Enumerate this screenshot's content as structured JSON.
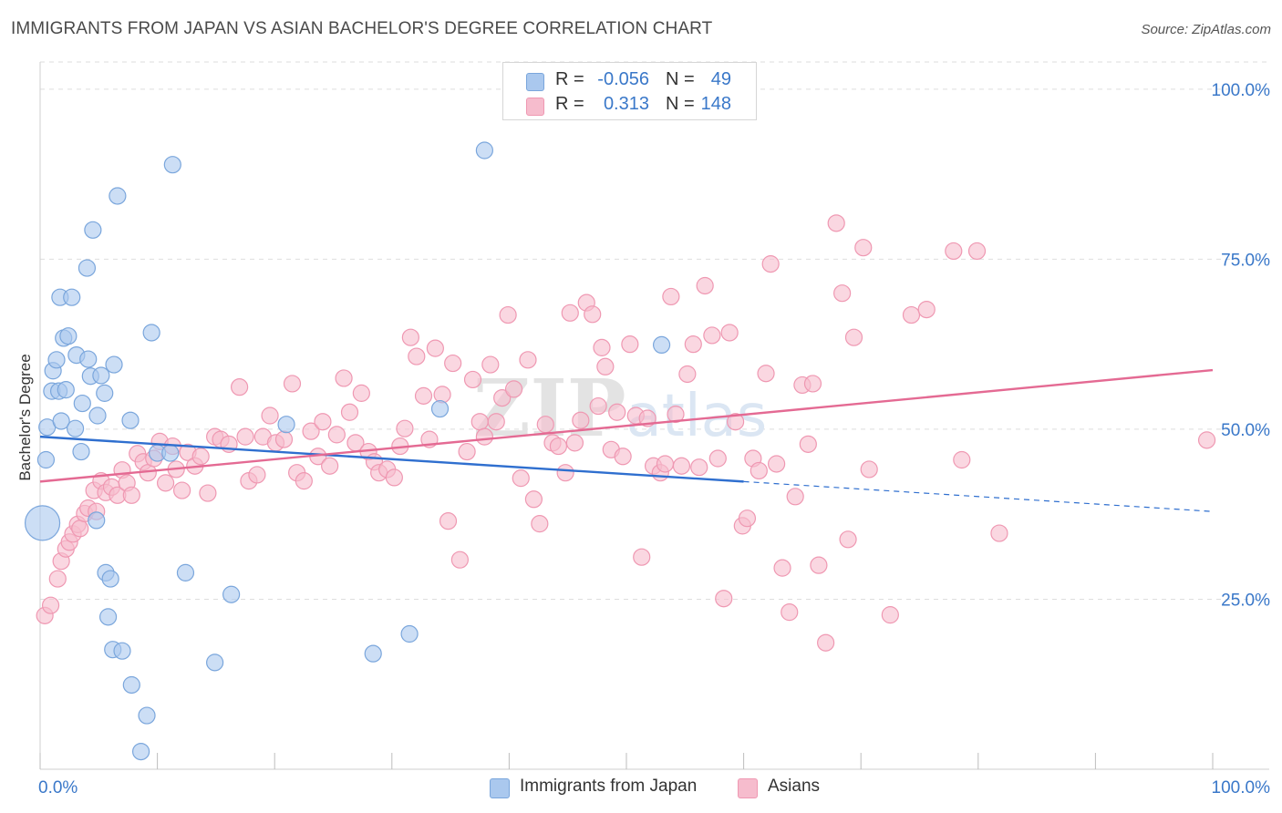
{
  "title": "IMMIGRANTS FROM JAPAN VS ASIAN BACHELOR'S DEGREE CORRELATION CHART",
  "source": "Source: ZipAtlas.com",
  "watermark": "ZIPatlas",
  "legend": {
    "rows": [
      {
        "r_label": "R =",
        "r_value": "-0.056",
        "n_label": "N =",
        "n_value": "49"
      },
      {
        "r_label": "R =",
        "r_value": "0.313",
        "n_label": "N =",
        "n_value": "148"
      }
    ]
  },
  "bottom_legend": {
    "japan": "Immigrants from Japan",
    "asians": "Asians"
  },
  "colors": {
    "japan_fill": "#aac8ee",
    "japan_stroke": "#7aa6dc",
    "japan_line": "#2f6fcf",
    "asians_fill": "#f6bccd",
    "asians_stroke": "#ef98b2",
    "asians_line": "#e46a93",
    "axis_text": "#3a78c9",
    "grid": "#dedede"
  },
  "chart_data": {
    "type": "scatter",
    "title": "IMMIGRANTS FROM JAPAN VS ASIAN BACHELOR'S DEGREE CORRELATION CHART",
    "xlabel": "",
    "ylabel": "Bachelor's Degree",
    "xlim": [
      0,
      100
    ],
    "ylim": [
      0,
      104
    ],
    "x_tick_labels": [
      "0.0%",
      "100.0%"
    ],
    "y_ticks": [
      25,
      50,
      75,
      100
    ],
    "y_tick_labels": [
      "25.0%",
      "50.0%",
      "75.0%",
      "100.0%"
    ],
    "grid": true,
    "legend_position": "top-center",
    "series": [
      {
        "name": "Immigrants from Japan",
        "r": -0.056,
        "n": 49,
        "trend": {
          "x0": 0,
          "y0": 48.9,
          "x1": 60,
          "y1": 42.3,
          "dashed_to_x": 100,
          "dashed_to_y": 37.9
        },
        "points": [
          [
            0.2,
            36.2,
            "L"
          ],
          [
            0.5,
            45.5,
            "M"
          ],
          [
            0.6,
            50.3,
            "M"
          ],
          [
            1.0,
            55.6,
            "M"
          ],
          [
            1.1,
            58.6,
            "M"
          ],
          [
            1.4,
            60.2,
            "M"
          ],
          [
            1.6,
            55.6,
            "M"
          ],
          [
            1.7,
            69.4,
            "M"
          ],
          [
            1.8,
            51.2,
            "M"
          ],
          [
            2.0,
            63.4,
            "M"
          ],
          [
            2.2,
            55.8,
            "M"
          ],
          [
            2.4,
            63.7,
            "M"
          ],
          [
            2.7,
            69.4,
            "M"
          ],
          [
            3.0,
            50.1,
            "M"
          ],
          [
            3.1,
            60.9,
            "M"
          ],
          [
            3.5,
            46.7,
            "M"
          ],
          [
            3.6,
            53.8,
            "M"
          ],
          [
            4.0,
            73.7,
            "M"
          ],
          [
            4.1,
            60.3,
            "M"
          ],
          [
            4.3,
            57.8,
            "M"
          ],
          [
            4.5,
            79.3,
            "M"
          ],
          [
            4.8,
            36.6,
            "M"
          ],
          [
            4.9,
            52.0,
            "M"
          ],
          [
            5.2,
            57.9,
            "M"
          ],
          [
            5.5,
            55.3,
            "M"
          ],
          [
            5.6,
            28.9,
            "M"
          ],
          [
            5.8,
            22.4,
            "M"
          ],
          [
            6.0,
            28.0,
            "M"
          ],
          [
            6.2,
            17.6,
            "M"
          ],
          [
            6.3,
            59.5,
            "M"
          ],
          [
            6.6,
            84.3,
            "M"
          ],
          [
            7.0,
            17.4,
            "M"
          ],
          [
            7.7,
            51.3,
            "M"
          ],
          [
            7.8,
            12.4,
            "M"
          ],
          [
            8.6,
            2.6,
            "M"
          ],
          [
            9.1,
            7.9,
            "M"
          ],
          [
            9.5,
            64.2,
            "M"
          ],
          [
            10.0,
            46.5,
            "M"
          ],
          [
            11.1,
            46.5,
            "M"
          ],
          [
            11.3,
            88.9,
            "M"
          ],
          [
            12.4,
            28.9,
            "M"
          ],
          [
            14.9,
            15.7,
            "M"
          ],
          [
            16.3,
            25.7,
            "M"
          ],
          [
            21.0,
            50.7,
            "M"
          ],
          [
            28.4,
            17.0,
            "M"
          ],
          [
            31.5,
            19.9,
            "M"
          ],
          [
            34.1,
            53.0,
            "M"
          ],
          [
            37.9,
            91.0,
            "M"
          ],
          [
            53.0,
            62.4,
            "M"
          ]
        ]
      },
      {
        "name": "Asians",
        "r": 0.313,
        "n": 148,
        "trend": {
          "x0": 0,
          "y0": 42.3,
          "x1": 100,
          "y1": 58.7
        },
        "points": [
          [
            0.4,
            22.6,
            "M"
          ],
          [
            0.9,
            24.1,
            "M"
          ],
          [
            1.5,
            28.0,
            "M"
          ],
          [
            1.8,
            30.6,
            "M"
          ],
          [
            2.2,
            32.4,
            "M"
          ],
          [
            2.5,
            33.4,
            "M"
          ],
          [
            2.8,
            34.6,
            "M"
          ],
          [
            3.2,
            36.0,
            "M"
          ],
          [
            3.4,
            35.4,
            "M"
          ],
          [
            3.8,
            37.6,
            "M"
          ],
          [
            4.1,
            38.4,
            "M"
          ],
          [
            4.6,
            41.0,
            "M"
          ],
          [
            4.8,
            37.9,
            "M"
          ],
          [
            5.2,
            42.4,
            "M"
          ],
          [
            5.6,
            40.7,
            "M"
          ],
          [
            6.1,
            41.5,
            "M"
          ],
          [
            6.6,
            40.3,
            "M"
          ],
          [
            7.0,
            44.0,
            "M"
          ],
          [
            7.4,
            42.1,
            "M"
          ],
          [
            7.8,
            40.3,
            "M"
          ],
          [
            8.3,
            46.4,
            "M"
          ],
          [
            8.8,
            45.2,
            "M"
          ],
          [
            9.2,
            43.6,
            "M"
          ],
          [
            9.7,
            45.7,
            "M"
          ],
          [
            10.2,
            48.2,
            "M"
          ],
          [
            10.7,
            42.1,
            "M"
          ],
          [
            11.3,
            47.5,
            "M"
          ],
          [
            11.6,
            44.1,
            "M"
          ],
          [
            12.1,
            41.0,
            "M"
          ],
          [
            12.6,
            46.6,
            "M"
          ],
          [
            13.2,
            44.6,
            "M"
          ],
          [
            13.7,
            46.0,
            "M"
          ],
          [
            14.3,
            40.6,
            "M"
          ],
          [
            14.9,
            48.9,
            "M"
          ],
          [
            15.4,
            48.5,
            "M"
          ],
          [
            16.1,
            47.8,
            "M"
          ],
          [
            17.0,
            56.2,
            "M"
          ],
          [
            17.5,
            48.9,
            "M"
          ],
          [
            17.8,
            42.4,
            "M"
          ],
          [
            18.5,
            43.3,
            "M"
          ],
          [
            19.0,
            48.9,
            "M"
          ],
          [
            19.6,
            52.0,
            "M"
          ],
          [
            20.1,
            48.0,
            "M"
          ],
          [
            20.8,
            48.5,
            "M"
          ],
          [
            21.5,
            56.7,
            "M"
          ],
          [
            21.9,
            43.6,
            "M"
          ],
          [
            22.5,
            42.4,
            "M"
          ],
          [
            23.1,
            49.7,
            "M"
          ],
          [
            23.7,
            46.0,
            "M"
          ],
          [
            24.1,
            51.1,
            "M"
          ],
          [
            24.7,
            44.6,
            "M"
          ],
          [
            25.3,
            49.2,
            "M"
          ],
          [
            25.9,
            57.5,
            "M"
          ],
          [
            26.4,
            52.5,
            "M"
          ],
          [
            26.9,
            48.0,
            "M"
          ],
          [
            27.4,
            55.3,
            "M"
          ],
          [
            28.0,
            46.7,
            "M"
          ],
          [
            28.5,
            45.2,
            "M"
          ],
          [
            28.9,
            43.6,
            "M"
          ],
          [
            29.6,
            44.1,
            "M"
          ],
          [
            30.2,
            42.9,
            "M"
          ],
          [
            30.7,
            47.5,
            "M"
          ],
          [
            31.1,
            50.1,
            "M"
          ],
          [
            31.6,
            63.5,
            "M"
          ],
          [
            32.1,
            60.7,
            "M"
          ],
          [
            32.7,
            54.9,
            "M"
          ],
          [
            33.2,
            48.5,
            "M"
          ],
          [
            33.7,
            61.9,
            "M"
          ],
          [
            34.3,
            55.1,
            "M"
          ],
          [
            34.8,
            36.5,
            "M"
          ],
          [
            35.2,
            59.7,
            "M"
          ],
          [
            35.8,
            30.8,
            "M"
          ],
          [
            36.4,
            46.7,
            "M"
          ],
          [
            36.9,
            57.3,
            "M"
          ],
          [
            37.5,
            51.1,
            "M"
          ],
          [
            37.9,
            48.9,
            "M"
          ],
          [
            38.4,
            59.5,
            "M"
          ],
          [
            38.9,
            51.1,
            "M"
          ],
          [
            39.4,
            54.6,
            "M"
          ],
          [
            39.9,
            66.8,
            "M"
          ],
          [
            40.4,
            55.9,
            "M"
          ],
          [
            41.0,
            42.8,
            "M"
          ],
          [
            41.6,
            60.2,
            "M"
          ],
          [
            42.1,
            39.7,
            "M"
          ],
          [
            42.6,
            36.1,
            "M"
          ],
          [
            43.1,
            50.7,
            "M"
          ],
          [
            43.7,
            48.0,
            "M"
          ],
          [
            44.2,
            47.5,
            "M"
          ],
          [
            44.8,
            43.6,
            "M"
          ],
          [
            45.2,
            67.1,
            "M"
          ],
          [
            45.6,
            48.0,
            "M"
          ],
          [
            46.1,
            51.3,
            "M"
          ],
          [
            46.6,
            68.6,
            "M"
          ],
          [
            47.1,
            66.9,
            "M"
          ],
          [
            47.6,
            53.4,
            "M"
          ],
          [
            47.9,
            62.0,
            "M"
          ],
          [
            48.2,
            59.2,
            "M"
          ],
          [
            48.7,
            47.0,
            "M"
          ],
          [
            49.2,
            52.5,
            "M"
          ],
          [
            49.7,
            46.0,
            "M"
          ],
          [
            50.3,
            62.5,
            "M"
          ],
          [
            50.8,
            52.0,
            "M"
          ],
          [
            51.3,
            31.2,
            "M"
          ],
          [
            51.8,
            51.6,
            "M"
          ],
          [
            52.3,
            44.6,
            "M"
          ],
          [
            52.9,
            43.6,
            "M"
          ],
          [
            53.3,
            44.9,
            "M"
          ],
          [
            53.8,
            69.5,
            "M"
          ],
          [
            54.2,
            52.2,
            "M"
          ],
          [
            54.7,
            44.6,
            "M"
          ],
          [
            55.2,
            58.1,
            "M"
          ],
          [
            55.7,
            62.5,
            "M"
          ],
          [
            56.2,
            44.4,
            "M"
          ],
          [
            56.7,
            71.1,
            "M"
          ],
          [
            57.3,
            63.8,
            "M"
          ],
          [
            57.8,
            45.7,
            "M"
          ],
          [
            58.3,
            25.1,
            "M"
          ],
          [
            58.8,
            64.2,
            "M"
          ],
          [
            59.3,
            51.1,
            "M"
          ],
          [
            59.9,
            35.8,
            "M"
          ],
          [
            60.3,
            36.9,
            "M"
          ],
          [
            60.8,
            45.7,
            "M"
          ],
          [
            61.3,
            43.9,
            "M"
          ],
          [
            61.9,
            58.2,
            "M"
          ],
          [
            62.3,
            74.3,
            "M"
          ],
          [
            62.8,
            44.9,
            "M"
          ],
          [
            63.3,
            29.6,
            "M"
          ],
          [
            63.9,
            23.1,
            "M"
          ],
          [
            64.4,
            40.1,
            "M"
          ],
          [
            65.0,
            56.5,
            "M"
          ],
          [
            65.5,
            47.8,
            "M"
          ],
          [
            65.9,
            56.7,
            "M"
          ],
          [
            66.4,
            30.0,
            "M"
          ],
          [
            67.0,
            18.6,
            "M"
          ],
          [
            67.9,
            80.3,
            "M"
          ],
          [
            68.4,
            70.0,
            "M"
          ],
          [
            68.9,
            33.8,
            "M"
          ],
          [
            69.4,
            63.5,
            "M"
          ],
          [
            70.2,
            76.7,
            "M"
          ],
          [
            70.7,
            44.1,
            "M"
          ],
          [
            72.5,
            22.7,
            "M"
          ],
          [
            74.3,
            66.8,
            "M"
          ],
          [
            75.6,
            67.6,
            "M"
          ],
          [
            77.9,
            76.2,
            "M"
          ],
          [
            78.6,
            45.5,
            "M"
          ],
          [
            79.9,
            76.2,
            "M"
          ],
          [
            81.8,
            34.7,
            "M"
          ],
          [
            99.5,
            48.4,
            "M"
          ]
        ]
      }
    ]
  }
}
